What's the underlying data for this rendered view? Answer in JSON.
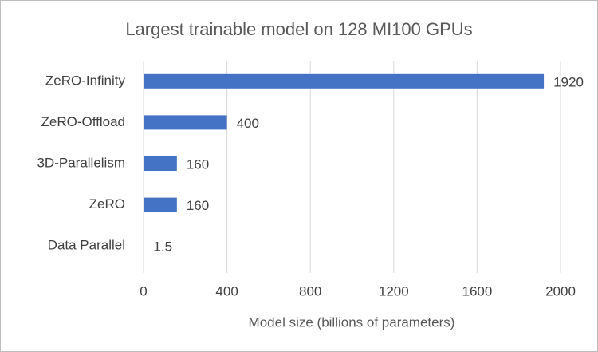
{
  "chart_data": {
    "type": "bar",
    "title": "Largest trainable model on 128 MI100 GPUs",
    "x_label": "Model size (billions of parameters)",
    "categories": [
      "ZeRO-Infinity",
      "ZeRO-Offload",
      "3D-Parallelism",
      "ZeRO",
      "Data Parallel"
    ],
    "values": [
      1920,
      400,
      160,
      160,
      1.5
    ],
    "color": "#4472c4",
    "xlim": [
      0,
      2000
    ],
    "xticks": [
      0,
      400,
      800,
      1200,
      1600,
      2000
    ],
    "grid": true
  }
}
